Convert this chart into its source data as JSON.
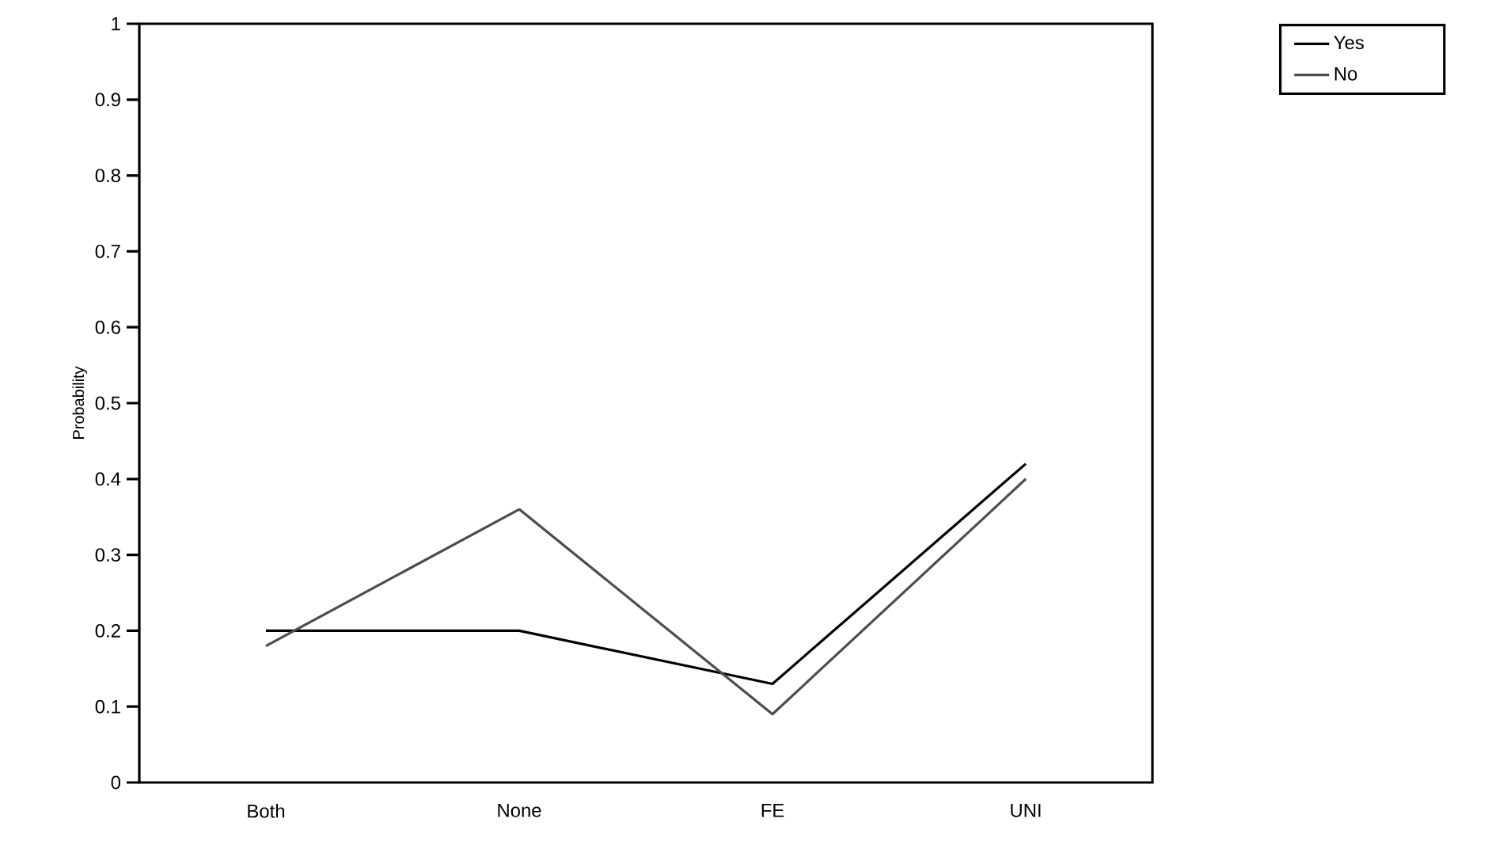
{
  "chart_data": {
    "type": "line",
    "ylabel": "Probability",
    "categories": [
      "Both",
      "None",
      "FE",
      "UNI"
    ],
    "series": [
      {
        "name": "Yes",
        "color": "#000000",
        "values": [
          0.2,
          0.2,
          0.13,
          0.42
        ]
      },
      {
        "name": "No",
        "color": "#4d4d4d",
        "values": [
          0.18,
          0.36,
          0.09,
          0.4
        ]
      }
    ],
    "ylim": [
      0,
      1
    ],
    "yticks": [
      0,
      0.1,
      0.2,
      0.3,
      0.4,
      0.5,
      0.6,
      0.7,
      0.8,
      0.9,
      1
    ],
    "legend": "top right"
  }
}
